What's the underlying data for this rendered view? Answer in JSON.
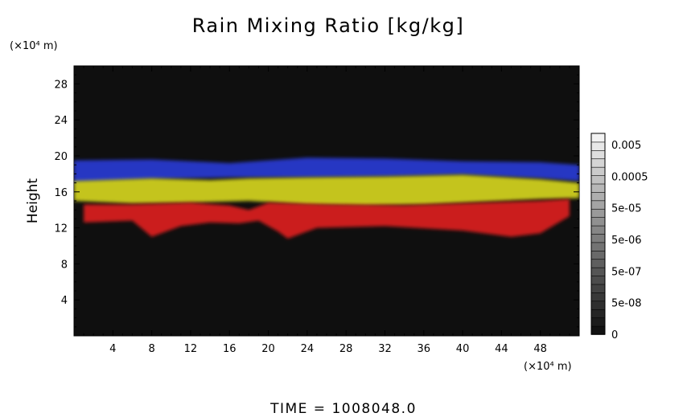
{
  "chart_data": {
    "type": "heatmap",
    "title": "Rain Mixing Ratio [kg/kg]",
    "ylabel": "Height",
    "xlabel": "",
    "x_unit": "(×10⁴ m)",
    "y_unit": "(×10⁴ m)",
    "xlim": [
      0,
      52
    ],
    "ylim": [
      0,
      30
    ],
    "x_ticks": [
      "4",
      "8",
      "12",
      "16",
      "20",
      "24",
      "28",
      "32",
      "36",
      "40",
      "44",
      "48"
    ],
    "y_ticks": [
      "4",
      "8",
      "12",
      "16",
      "20",
      "24",
      "28"
    ],
    "background_color": "#0f0f0f",
    "colorbar": {
      "labels": [
        "0.005",
        "0.0005",
        "5e-05",
        "5e-06",
        "5e-07",
        "5e-08",
        "0"
      ],
      "scale": "log"
    },
    "layers": [
      {
        "color": "#2a3cd6",
        "top": [
          [
            0,
            19.5
          ],
          [
            8,
            19.6
          ],
          [
            16,
            19.2
          ],
          [
            24,
            19.8
          ],
          [
            32,
            19.7
          ],
          [
            40,
            19.4
          ],
          [
            48,
            19.3
          ],
          [
            52,
            19.0
          ]
        ],
        "bottom": [
          [
            0,
            17.0
          ],
          [
            8,
            17.4
          ],
          [
            16,
            17.6
          ],
          [
            24,
            17.6
          ],
          [
            32,
            17.7
          ],
          [
            40,
            17.9
          ],
          [
            48,
            17.5
          ],
          [
            52,
            17.2
          ]
        ]
      },
      {
        "color": "#d8d820",
        "top": [
          [
            0,
            17.2
          ],
          [
            8,
            17.5
          ],
          [
            14,
            17.3
          ],
          [
            18,
            17.5
          ],
          [
            24,
            17.6
          ],
          [
            32,
            17.7
          ],
          [
            40,
            17.9
          ],
          [
            48,
            17.4
          ],
          [
            52,
            17.0
          ]
        ],
        "bottom": [
          [
            0,
            15.0
          ],
          [
            6,
            14.7
          ],
          [
            12,
            14.8
          ],
          [
            18,
            15.0
          ],
          [
            24,
            14.6
          ],
          [
            30,
            14.5
          ],
          [
            36,
            14.6
          ],
          [
            42,
            14.9
          ],
          [
            48,
            15.2
          ],
          [
            52,
            15.3
          ]
        ]
      },
      {
        "color": "#e02020",
        "top": [
          [
            1,
            14.6
          ],
          [
            6,
            14.6
          ],
          [
            12,
            14.8
          ],
          [
            16,
            14.5
          ],
          [
            18,
            14.0
          ],
          [
            20,
            14.8
          ],
          [
            26,
            14.6
          ],
          [
            34,
            14.5
          ],
          [
            42,
            14.8
          ],
          [
            48,
            15.0
          ],
          [
            51,
            15.2
          ]
        ],
        "bottom": [
          [
            1,
            12.6
          ],
          [
            6,
            12.8
          ],
          [
            8,
            11.0
          ],
          [
            11,
            12.2
          ],
          [
            14,
            12.6
          ],
          [
            17,
            12.5
          ],
          [
            19,
            12.8
          ],
          [
            21,
            11.6
          ],
          [
            22,
            10.8
          ],
          [
            25,
            12.0
          ],
          [
            32,
            12.2
          ],
          [
            40,
            11.7
          ],
          [
            45,
            11.0
          ],
          [
            48,
            11.4
          ],
          [
            51,
            13.3
          ]
        ]
      }
    ]
  },
  "footer": {
    "time_text": "TIME  =  1008048.0"
  }
}
